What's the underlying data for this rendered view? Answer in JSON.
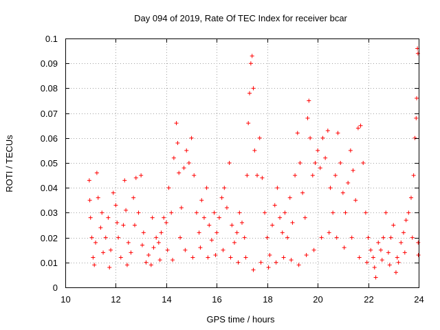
{
  "chart_data": {
    "type": "scatter",
    "title": "Day 094 of 2019, Rate Of TEC Index for receiver bcar",
    "xlabel": "GPS time / hours",
    "ylabel": "ROTI / TECUs",
    "xlim": [
      10,
      24
    ],
    "ylim": [
      0,
      0.1
    ],
    "x_ticks": [
      "10",
      "12",
      "14",
      "16",
      "18",
      "20",
      "22",
      "24"
    ],
    "y_ticks": [
      "0",
      "0.01",
      "0.02",
      "0.03",
      "0.04",
      "0.05",
      "0.06",
      "0.07",
      "0.08",
      "0.09",
      "0.1"
    ],
    "grid": true,
    "marker": "+",
    "color": "#ff0000",
    "series": [
      {
        "name": "ROTI",
        "points": [
          [
            10.95,
            0.043
          ],
          [
            10.97,
            0.035
          ],
          [
            11.0,
            0.028
          ],
          [
            11.05,
            0.02
          ],
          [
            11.1,
            0.012
          ],
          [
            11.2,
            0.018
          ],
          [
            11.25,
            0.046
          ],
          [
            11.3,
            0.036
          ],
          [
            11.4,
            0.024
          ],
          [
            11.5,
            0.014
          ],
          [
            11.6,
            0.02
          ],
          [
            11.7,
            0.028
          ],
          [
            11.8,
            0.015
          ],
          [
            11.9,
            0.038
          ],
          [
            12.0,
            0.033
          ],
          [
            12.1,
            0.02
          ],
          [
            12.2,
            0.012
          ],
          [
            12.3,
            0.025
          ],
          [
            12.35,
            0.043
          ],
          [
            12.4,
            0.031
          ],
          [
            12.5,
            0.018
          ],
          [
            12.6,
            0.014
          ],
          [
            12.7,
            0.036
          ],
          [
            12.8,
            0.044
          ],
          [
            12.9,
            0.03
          ],
          [
            13.0,
            0.045
          ],
          [
            13.1,
            0.022
          ],
          [
            13.2,
            0.01
          ],
          [
            13.3,
            0.013
          ],
          [
            13.4,
            0.009
          ],
          [
            13.5,
            0.016
          ],
          [
            13.6,
            0.02
          ],
          [
            13.7,
            0.018
          ],
          [
            13.8,
            0.022
          ],
          [
            13.9,
            0.028
          ],
          [
            14.0,
            0.026
          ],
          [
            14.1,
            0.04
          ],
          [
            14.2,
            0.03
          ],
          [
            14.3,
            0.052
          ],
          [
            14.4,
            0.066
          ],
          [
            14.45,
            0.058
          ],
          [
            14.5,
            0.046
          ],
          [
            14.6,
            0.032
          ],
          [
            14.7,
            0.048
          ],
          [
            14.8,
            0.055
          ],
          [
            14.9,
            0.05
          ],
          [
            15.0,
            0.06
          ],
          [
            15.1,
            0.045
          ],
          [
            15.2,
            0.03
          ],
          [
            15.3,
            0.022
          ],
          [
            15.4,
            0.035
          ],
          [
            15.5,
            0.028
          ],
          [
            15.6,
            0.04
          ],
          [
            15.7,
            0.025
          ],
          [
            15.8,
            0.019
          ],
          [
            15.9,
            0.03
          ],
          [
            16.0,
            0.022
          ],
          [
            16.1,
            0.028
          ],
          [
            16.2,
            0.036
          ],
          [
            16.3,
            0.04
          ],
          [
            16.4,
            0.032
          ],
          [
            16.5,
            0.05
          ],
          [
            16.6,
            0.025
          ],
          [
            16.7,
            0.018
          ],
          [
            16.8,
            0.022
          ],
          [
            16.9,
            0.03
          ],
          [
            17.0,
            0.026
          ],
          [
            17.1,
            0.02
          ],
          [
            17.2,
            0.045
          ],
          [
            17.25,
            0.066
          ],
          [
            17.3,
            0.078
          ],
          [
            17.35,
            0.09
          ],
          [
            17.4,
            0.093
          ],
          [
            17.45,
            0.08
          ],
          [
            17.5,
            0.055
          ],
          [
            17.6,
            0.045
          ],
          [
            17.7,
            0.06
          ],
          [
            17.8,
            0.044
          ],
          [
            17.9,
            0.03
          ],
          [
            18.0,
            0.02
          ],
          [
            18.1,
            0.013
          ],
          [
            18.2,
            0.025
          ],
          [
            18.3,
            0.033
          ],
          [
            18.4,
            0.04
          ],
          [
            18.5,
            0.028
          ],
          [
            18.6,
            0.022
          ],
          [
            18.7,
            0.03
          ],
          [
            18.8,
            0.02
          ],
          [
            18.9,
            0.036
          ],
          [
            19.0,
            0.026
          ],
          [
            19.1,
            0.045
          ],
          [
            19.2,
            0.062
          ],
          [
            19.3,
            0.05
          ],
          [
            19.4,
            0.038
          ],
          [
            19.5,
            0.028
          ],
          [
            19.6,
            0.068
          ],
          [
            19.65,
            0.075
          ],
          [
            19.7,
            0.06
          ],
          [
            19.8,
            0.045
          ],
          [
            19.9,
            0.05
          ],
          [
            20.0,
            0.055
          ],
          [
            20.1,
            0.048
          ],
          [
            20.2,
            0.06
          ],
          [
            20.3,
            0.052
          ],
          [
            20.4,
            0.063
          ],
          [
            20.5,
            0.04
          ],
          [
            20.6,
            0.03
          ],
          [
            20.7,
            0.045
          ],
          [
            20.8,
            0.062
          ],
          [
            20.9,
            0.05
          ],
          [
            21.0,
            0.038
          ],
          [
            21.1,
            0.03
          ],
          [
            21.2,
            0.042
          ],
          [
            21.3,
            0.055
          ],
          [
            21.4,
            0.047
          ],
          [
            21.5,
            0.035
          ],
          [
            21.6,
            0.064
          ],
          [
            21.7,
            0.065
          ],
          [
            21.8,
            0.05
          ],
          [
            21.9,
            0.03
          ],
          [
            22.0,
            0.02
          ],
          [
            22.1,
            0.015
          ],
          [
            22.2,
            0.012
          ],
          [
            22.3,
            0.004
          ],
          [
            22.4,
            0.018
          ],
          [
            22.5,
            0.015
          ],
          [
            22.6,
            0.02
          ],
          [
            22.7,
            0.03
          ],
          [
            22.8,
            0.014
          ],
          [
            22.9,
            0.02
          ],
          [
            23.0,
            0.025
          ],
          [
            23.1,
            0.006
          ],
          [
            23.2,
            0.01
          ],
          [
            23.3,
            0.018
          ],
          [
            23.4,
            0.022
          ],
          [
            23.5,
            0.027
          ],
          [
            23.6,
            0.03
          ],
          [
            23.7,
            0.036
          ],
          [
            23.8,
            0.045
          ],
          [
            23.85,
            0.06
          ],
          [
            23.9,
            0.068
          ],
          [
            23.92,
            0.076
          ],
          [
            23.95,
            0.096
          ],
          [
            23.97,
            0.094
          ],
          [
            23.99,
            0.013
          ],
          [
            11.15,
            0.009
          ],
          [
            11.45,
            0.03
          ],
          [
            11.75,
            0.008
          ],
          [
            12.05,
            0.026
          ],
          [
            12.45,
            0.009
          ],
          [
            12.75,
            0.025
          ],
          [
            13.05,
            0.017
          ],
          [
            13.45,
            0.028
          ],
          [
            13.75,
            0.011
          ],
          [
            14.05,
            0.015
          ],
          [
            14.25,
            0.011
          ],
          [
            14.55,
            0.02
          ],
          [
            14.75,
            0.015
          ],
          [
            15.05,
            0.012
          ],
          [
            15.35,
            0.016
          ],
          [
            15.65,
            0.012
          ],
          [
            15.95,
            0.013
          ],
          [
            16.25,
            0.015
          ],
          [
            16.55,
            0.012
          ],
          [
            16.85,
            0.01
          ],
          [
            17.15,
            0.012
          ],
          [
            17.45,
            0.007
          ],
          [
            17.75,
            0.01
          ],
          [
            18.05,
            0.008
          ],
          [
            18.35,
            0.01
          ],
          [
            18.65,
            0.012
          ],
          [
            18.95,
            0.011
          ],
          [
            19.25,
            0.009
          ],
          [
            19.55,
            0.013
          ],
          [
            19.85,
            0.015
          ],
          [
            20.15,
            0.02
          ],
          [
            20.45,
            0.022
          ],
          [
            20.75,
            0.02
          ],
          [
            21.05,
            0.016
          ],
          [
            21.35,
            0.02
          ],
          [
            21.65,
            0.012
          ],
          [
            21.95,
            0.01
          ],
          [
            22.25,
            0.008
          ],
          [
            22.55,
            0.011
          ],
          [
            22.85,
            0.009
          ],
          [
            23.15,
            0.012
          ],
          [
            23.45,
            0.014
          ],
          [
            23.75,
            0.02
          ],
          [
            23.98,
            0.018
          ]
        ]
      }
    ]
  }
}
